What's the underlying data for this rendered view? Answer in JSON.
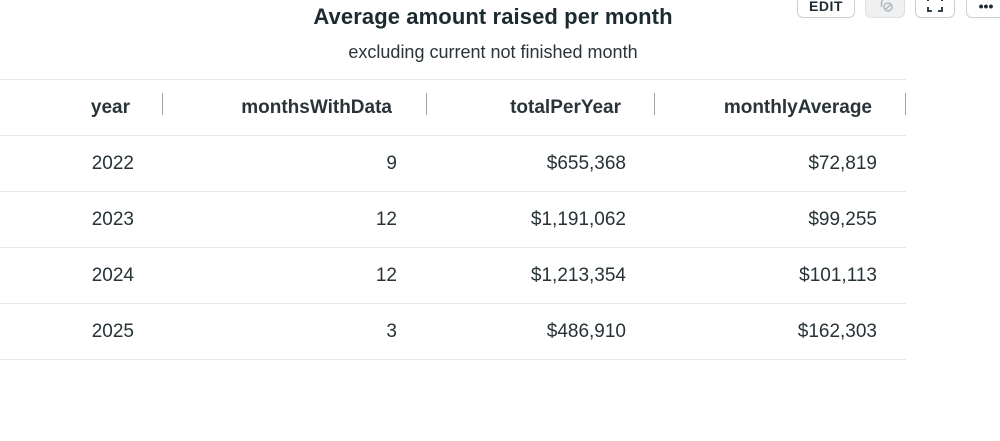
{
  "header": {
    "title": "Average amount raised per month",
    "subtitle": "excluding current not finished month"
  },
  "toolbar": {
    "edit_label": "EDIT",
    "filter_icon": "filter-off-icon",
    "expand_icon": "expand-icon",
    "more_label": "•••"
  },
  "table": {
    "columns": [
      "year",
      "monthsWithData",
      "totalPerYear",
      "monthlyAverage"
    ],
    "rows": [
      {
        "year": "2022",
        "monthsWithData": "9",
        "totalPerYear": "$655,368",
        "monthlyAverage": "$72,819"
      },
      {
        "year": "2023",
        "monthsWithData": "12",
        "totalPerYear": "$1,191,062",
        "monthlyAverage": "$99,255"
      },
      {
        "year": "2024",
        "monthsWithData": "12",
        "totalPerYear": "$1,213,354",
        "monthlyAverage": "$101,113"
      },
      {
        "year": "2025",
        "monthsWithData": "3",
        "totalPerYear": "$486,910",
        "monthlyAverage": "$162,303"
      }
    ]
  }
}
